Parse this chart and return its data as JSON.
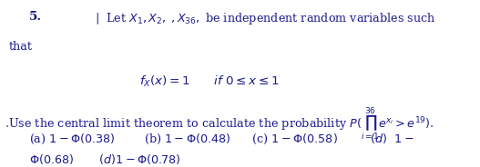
{
  "background_color": "#ffffff",
  "text_color": "#1a1a8c",
  "number": "5.",
  "line1": "| Let $X_1, X_2, \\, , X_{36},$ be independent random variables such",
  "line1b": "that",
  "formula": "$f_X(x) = 1 \\quad if\\ 0 \\leq x \\leq 1$",
  "line2": ".Use the central limit theorem to calculate the probability $P(\\prod_{i=1}^{36} e^{x_i} > e^{19})$.",
  "options_line1": "(a) $1 - \\Phi(0.38)$        (b) $1 - \\Phi(0.48)$       (c) $1 - \\Phi(0.58)$         (d)  $1 -$",
  "options_line2": "$\\Phi(0.68)$       $(d)1 - \\Phi(0.78)$"
}
